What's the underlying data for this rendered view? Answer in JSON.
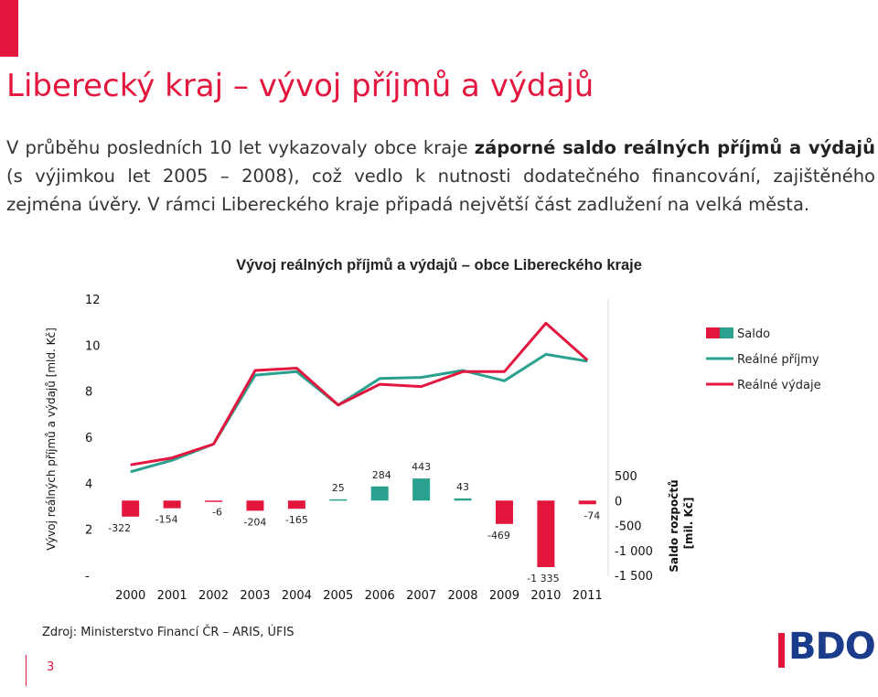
{
  "slide": {
    "title": "Liberecký kraj – vývoj příjmů a výdajů",
    "intro_parts": [
      "V průběhu posledních 10 let vykazovaly obce kraje ",
      "záporné saldo reálných příjmů a výdajů",
      " (s výjimkou let 2005 – 2008), což vedlo k nutnosti dodatečného financování, zajištěného zejména úvěry. V rámci Libereckého kraje připadá největší část zadlužení na velká města."
    ],
    "source": "Zdroj: Ministerstvo Financí ČR – ARIS, ÚFIS",
    "page_number": "3",
    "logo_text": "BDO"
  },
  "colors": {
    "accent": "#e3173e",
    "saldo_negative": "#e3173e",
    "saldo_positive": "#2aa08f",
    "income": "#2aa08f",
    "expense": "#e3173e",
    "logo": "#1a3c8a"
  },
  "chart_data": {
    "type": "line",
    "title": "Vývoj reálných příjmů a výdajů – obce Libereckého kraje",
    "categories": [
      "2000",
      "2001",
      "2002",
      "2003",
      "2004",
      "2005",
      "2006",
      "2007",
      "2008",
      "2009",
      "2010",
      "2011"
    ],
    "ylabel_left": "Vývoj reálných příjmů a výdajů [mld. Kč]",
    "ylabel_right": "Saldo rozpočtů [mil. Kč]",
    "y_left_ticks": [
      "-",
      "2",
      "4",
      "6",
      "8",
      "10",
      "12"
    ],
    "y_left_range": [
      0,
      12
    ],
    "y_right_ticks": [
      "-1 500",
      "-1 000",
      "-500",
      "0",
      "500"
    ],
    "y_right_range": [
      -1500,
      500
    ],
    "grid": false,
    "legend_position": "right",
    "series": [
      {
        "name": "Saldo",
        "kind": "bar",
        "axis": "right",
        "values": [
          -322,
          -154,
          -6,
          -204,
          -165,
          25,
          284,
          443,
          43,
          -469,
          -1335,
          -74
        ],
        "labels": [
          "-322",
          "-154",
          "-6",
          "-204",
          "-165",
          "25",
          "284",
          "443",
          "43",
          "-469",
          "-1 335",
          "-74"
        ]
      },
      {
        "name": "Reálné příjmy",
        "kind": "line",
        "axis": "left",
        "values": [
          4.5,
          5.0,
          5.7,
          8.7,
          8.85,
          7.4,
          8.55,
          8.6,
          8.9,
          8.45,
          9.6,
          9.3
        ]
      },
      {
        "name": "Reálné výdaje",
        "kind": "line",
        "axis": "left",
        "values": [
          4.8,
          5.1,
          5.7,
          8.9,
          9.0,
          7.4,
          8.3,
          8.2,
          8.85,
          8.85,
          10.95,
          9.35
        ]
      }
    ]
  }
}
